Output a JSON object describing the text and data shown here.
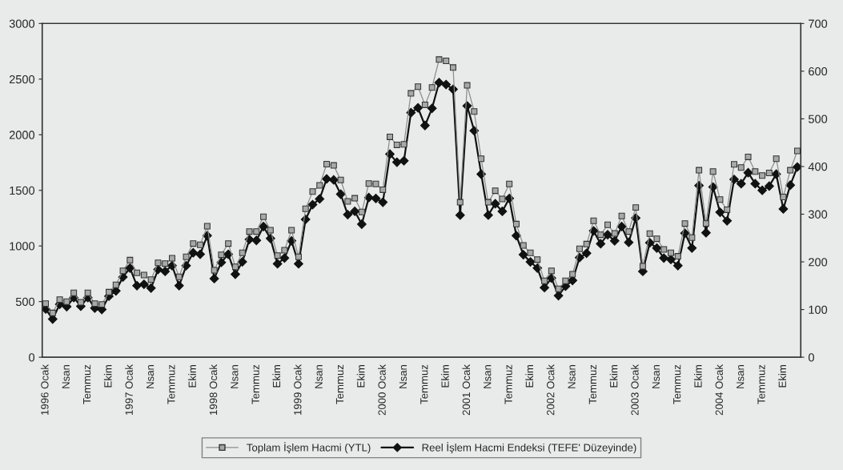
{
  "chart_data": {
    "type": "line",
    "categories": [
      "1996 Ocak",
      null,
      null,
      "Nsan",
      null,
      null,
      "Temmuz",
      null,
      null,
      "Ekim",
      null,
      null,
      "1997 Ocak",
      null,
      null,
      "Nsan",
      null,
      null,
      "Temmuz",
      null,
      null,
      "Ekim",
      null,
      null,
      "1998 Ocak",
      null,
      null,
      "Nsan",
      null,
      null,
      "Temmuz",
      null,
      null,
      "Ekim",
      null,
      null,
      "1999 Ocak",
      null,
      null,
      "Nsan",
      null,
      null,
      "Temmuz",
      null,
      null,
      "Ekim",
      null,
      null,
      "2000 Ocak",
      null,
      null,
      "Nsan",
      null,
      null,
      "Temmuz",
      null,
      null,
      "Ekim",
      null,
      null,
      "2001 Ocak",
      null,
      null,
      "Nsan",
      null,
      null,
      "Temmuz",
      null,
      null,
      "Ekim",
      null,
      null,
      "2002 Ocak",
      null,
      null,
      "Nsan",
      null,
      null,
      "Temmuz",
      null,
      null,
      "Ekim",
      null,
      null,
      "2003 Ocak",
      null,
      null,
      "Nsan",
      null,
      null,
      "Temmuz",
      null,
      null,
      "Ekim",
      null,
      null,
      "2004 Ocak",
      null,
      null,
      "Nsan",
      null,
      null,
      "Temmuz",
      null,
      null,
      "Ekim",
      null,
      null
    ],
    "series": [
      {
        "name": "Toplam İşlem Hacmi (YTL)",
        "color": "#8c8c8c",
        "marker": "square",
        "values": [
          482,
          398,
          518,
          499,
          578,
          494,
          578,
          482,
          475,
          585,
          650,
          777,
          873,
          758,
          739,
          698,
          849,
          842,
          890,
          722,
          902,
          1022,
          1010,
          1178,
          782,
          921,
          1022,
          813,
          938,
          1130,
          1130,
          1262,
          1142,
          914,
          962,
          1142,
          902,
          1334,
          1489,
          1545,
          1736,
          1724,
          1593,
          1401,
          1429,
          1305,
          1561,
          1557,
          1506,
          1981,
          1909,
          1914,
          2372,
          2432,
          2269,
          2425,
          2676,
          2664,
          2604,
          1393,
          2444,
          2209,
          1784,
          1393,
          1497,
          1422,
          1557,
          1197,
          1005,
          938,
          878,
          686,
          777,
          614,
          686,
          746,
          974,
          1017,
          1226,
          1101,
          1190,
          1113,
          1269,
          1130,
          1346,
          818,
          1111,
          1065,
          969,
          938,
          907,
          1202,
          1075,
          1681,
          1202,
          1669,
          1417,
          1326,
          1734,
          1705,
          1801,
          1669,
          1633,
          1657,
          1784,
          1441,
          1681,
          1854
        ]
      },
      {
        "name": "Reel İşlem Hacmi Endeksi (TEFE' Düzeyinde)",
        "color": "#111111",
        "marker": "diamond",
        "axis": "y2",
        "values": [
          101,
          80,
          111,
          106,
          125,
          107,
          125,
          103,
          100,
          128,
          139,
          168,
          187,
          150,
          153,
          145,
          184,
          180,
          192,
          150,
          192,
          219,
          216,
          255,
          165,
          199,
          216,
          174,
          200,
          247,
          245,
          274,
          249,
          196,
          208,
          244,
          196,
          289,
          320,
          332,
          374,
          372,
          342,
          299,
          306,
          279,
          335,
          333,
          325,
          426,
          409,
          412,
          513,
          523,
          486,
          522,
          576,
          572,
          562,
          298,
          527,
          475,
          384,
          298,
          322,
          306,
          333,
          255,
          215,
          200,
          187,
          146,
          166,
          129,
          149,
          161,
          209,
          218,
          265,
          238,
          257,
          244,
          274,
          241,
          292,
          180,
          240,
          229,
          208,
          205,
          192,
          260,
          229,
          360,
          261,
          357,
          304,
          286,
          373,
          364,
          387,
          364,
          350,
          359,
          384,
          311,
          361,
          399
        ]
      }
    ],
    "ylim": [
      0,
      3000
    ],
    "yticks": [
      0,
      500,
      1000,
      1500,
      2000,
      2500,
      3000
    ],
    "y2lim": [
      0,
      700
    ],
    "y2ticks": [
      0,
      100,
      200,
      300,
      400,
      500,
      600,
      700
    ],
    "grid": false,
    "legend": "bottom"
  }
}
